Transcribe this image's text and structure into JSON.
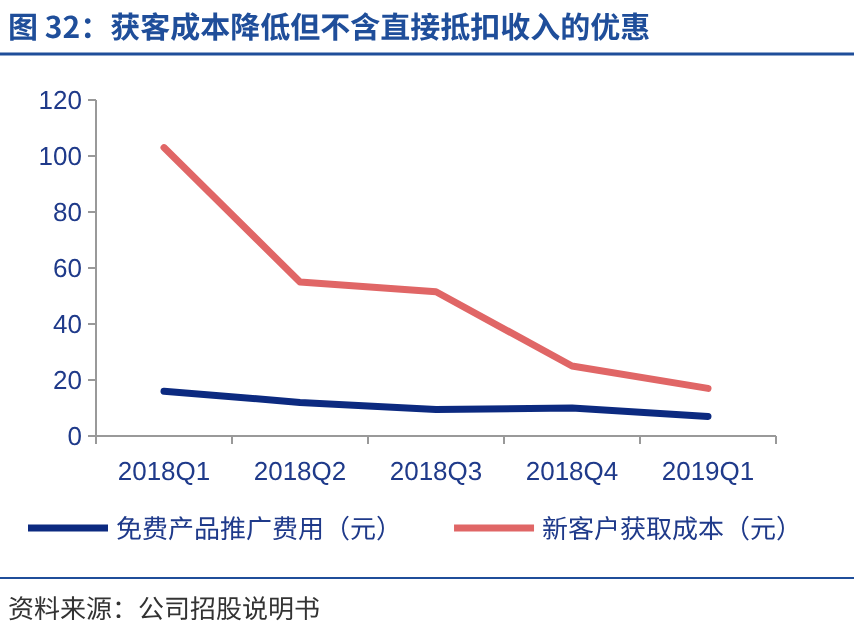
{
  "chart_data": {
    "type": "line",
    "title": "图 32：获客成本降低但不含直接抵扣收入的优惠",
    "categories": [
      "2018Q1",
      "2018Q2",
      "2018Q3",
      "2018Q4",
      "2019Q1"
    ],
    "series": [
      {
        "name": "免费产品推广费用（元）",
        "color": "#0c2a80",
        "values": [
          16,
          12,
          9.5,
          10,
          7
        ]
      },
      {
        "name": "新客户获取成本（元）",
        "color": "#e06666",
        "values": [
          103,
          55,
          51.5,
          25,
          17
        ]
      }
    ],
    "ylim": [
      0,
      120
    ],
    "yticks": [
      0,
      20,
      40,
      60,
      80,
      100,
      120
    ],
    "grid": false,
    "legend": "bottom",
    "marker": "none",
    "line_style": "solid",
    "annotations": [
      "资料来源：公司招股说明书"
    ]
  }
}
